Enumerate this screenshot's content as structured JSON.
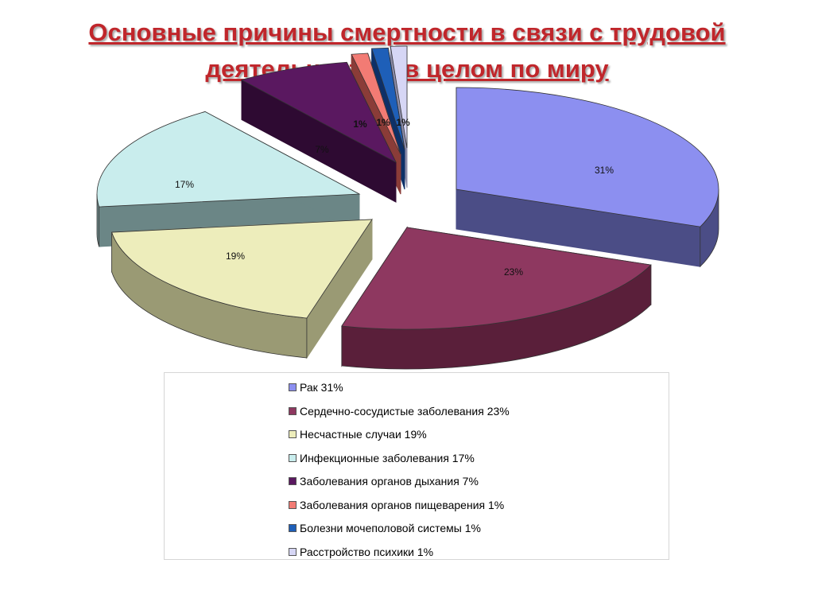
{
  "title": {
    "line1": "Основные причины смертности в связи с трудовой",
    "line2": "деятельностью в целом по миру"
  },
  "chart_data": {
    "type": "pie",
    "title": "Основные причины смертности в связи с трудовой деятельностью в целом по миру",
    "slices": [
      {
        "label": "Рак",
        "legend": "Рак 31%",
        "value": 31,
        "data_label": "31%",
        "color": "#8c8ff0",
        "dark": "#4b4d86"
      },
      {
        "label": "Сердечно-сосудистые заболевания",
        "legend": "Сердечно-сосудистые заболевания 23%",
        "value": 23,
        "data_label": "23%",
        "color": "#8e3860",
        "dark": "#5a1f3a"
      },
      {
        "label": "Несчастные случаи",
        "legend": "Несчастные случаи 19%",
        "value": 19,
        "data_label": "19%",
        "color": "#ededbb",
        "dark": "#9a9a74"
      },
      {
        "label": "Инфекционные заболевания",
        "legend": "Инфекционные заболевания 17%",
        "value": 17,
        "data_label": "17%",
        "color": "#c9eded",
        "dark": "#6b8686"
      },
      {
        "label": "Заболевания органов дыхания",
        "legend": "Заболевания органов дыхания 7%",
        "value": 7,
        "data_label": "7%",
        "color": "#5a1860",
        "dark": "#2e0a32"
      },
      {
        "label": "Заболевания органов пищеварения",
        "legend": "Заболевания органов пищеварения 1%",
        "value": 1,
        "data_label": "1%",
        "color": "#f27b74",
        "dark": "#8a3c38"
      },
      {
        "label": "Болезни мочеполовой системы",
        "legend": "Болезни мочеполовой системы 1%",
        "value": 1,
        "data_label": "1%",
        "color": "#1e5fb8",
        "dark": "#0d3068"
      },
      {
        "label": "Расстройство психики",
        "legend": "Расстройство психики 1%",
        "value": 1,
        "data_label": "1%",
        "color": "#d6d6f5",
        "dark": "#8c8ca8"
      }
    ],
    "legend_position": "bottom"
  }
}
